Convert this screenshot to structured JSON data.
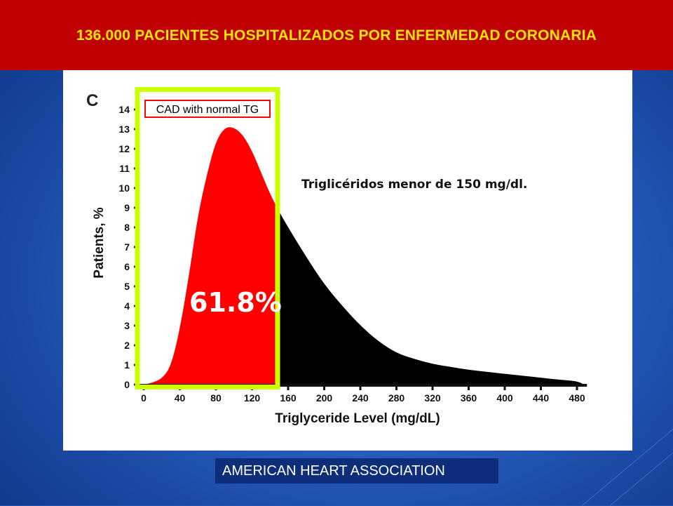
{
  "slide": {
    "title": "136.000 PACIENTES HOSPITALIZADOS POR ENFERMEDAD CORONARIA",
    "source": "AMERICAN HEART ASSOCIATION",
    "annotation": "Triglicéridos menor de 150 mg/dl."
  },
  "colors": {
    "title_bg": "#c00000",
    "title_text": "#ffe600",
    "highlight_fill": "#ff0000",
    "remaining_fill": "#000000",
    "highlight_box": "#ccff00",
    "legend_border": "#ff0000"
  },
  "chart_data": {
    "type": "area",
    "panel_letter": "C",
    "legend": "CAD with normal TG",
    "highlight_label": "61.8%",
    "highlight_range": [
      0,
      150
    ],
    "xlabel": "Triglyceride Level (mg/dL)",
    "ylabel": "Patients, %",
    "xlim": [
      0,
      488
    ],
    "ylim": [
      0,
      14
    ],
    "x_ticks": [
      0,
      40,
      80,
      120,
      160,
      200,
      240,
      280,
      320,
      360,
      400,
      440,
      480
    ],
    "y_ticks": [
      0,
      1,
      2,
      3,
      4,
      5,
      6,
      7,
      8,
      9,
      10,
      11,
      12,
      13,
      14
    ],
    "grid": false,
    "x": [
      0,
      10,
      20,
      30,
      40,
      50,
      60,
      70,
      80,
      90,
      100,
      110,
      120,
      130,
      140,
      150,
      160,
      180,
      200,
      220,
      240,
      260,
      280,
      300,
      320,
      340,
      360,
      380,
      400,
      420,
      440,
      460,
      480,
      488
    ],
    "y": [
      0,
      0.1,
      0.3,
      0.9,
      2.8,
      5.5,
      8.6,
      10.7,
      12.4,
      13.1,
      13.1,
      12.7,
      11.9,
      10.8,
      9.7,
      8.8,
      8.0,
      6.5,
      5.1,
      4.0,
      3.0,
      2.2,
      1.6,
      1.3,
      1.05,
      0.9,
      0.75,
      0.65,
      0.55,
      0.45,
      0.35,
      0.25,
      0.18,
      0
    ]
  }
}
